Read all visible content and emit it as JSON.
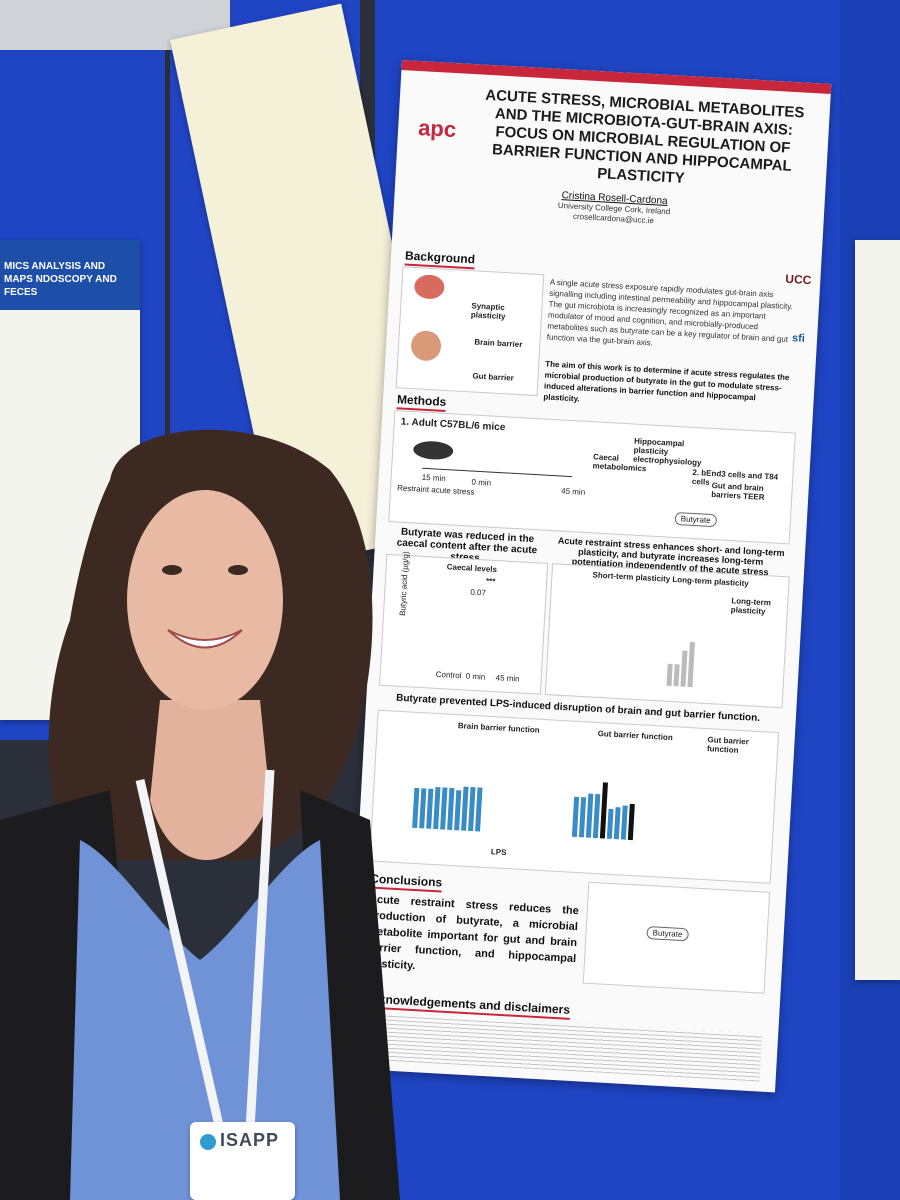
{
  "poster": {
    "title": "ACUTE STRESS, MICROBIAL METABOLITES AND THE MICROBIOTA-GUT-BRAIN AXIS: FOCUS ON MICROBIAL REGULATION OF BARRIER FUNCTION AND HIPPOCAMPAL PLASTICITY",
    "logo": "apc",
    "author_line": "Cristina Rosell-Cardona",
    "affiliation": "University College Cork, Ireland",
    "email": "crosellcardona@ucc.ie",
    "sections": {
      "background": "Background",
      "methods": "Methods",
      "conclusions": "Conclusions",
      "acknowledgements": "Acknowledgements and disclaimers"
    },
    "background_labels": [
      "Synaptic plasticity",
      "Brain barrier",
      "Gut barrier"
    ],
    "background_text": "A single acute stress exposure rapidly modulates gut-brain axis signalling including intestinal permeability and hippocampal plasticity. The gut microbiota is increasingly recognized as an important modulator of mood and cognition, and microbially-produced metabolites such as butyrate can be a key regulator of brain and gut function via the gut-brain axis.",
    "aim_text": "The aim of this work is to determine if acute stress regulates the microbial production of butyrate in the gut to modulate stress-induced alterations in barrier function and hippocampal plasticity.",
    "methods_step1": "1. Adult C57BL/6 mice",
    "methods_step2": "2. bEnd3 cells and T84 cells",
    "methods_labels": {
      "caecal": "Caecal metabolomics",
      "hippo": "Hippocampal plasticity electrophysiology",
      "barrier": "Gut and brain barriers TEER",
      "stress": "Restraint acute stress",
      "butyrate": "Butyrate",
      "t15": "15 min",
      "t0": "0 min",
      "t45": "45 min"
    },
    "result1_head": "Butyrate was reduced in the caecal content after the acute stress.",
    "result1_chart": "Caecal levels",
    "result1_ylabel": "Butyric acid (µg/g)",
    "result1_x": [
      "Control",
      "0 min",
      "45 min"
    ],
    "result1_sig": "***",
    "result1_p": "0.07",
    "result2_head": "Acute restraint stress enhances short- and long-term plasticity, and butyrate increases long-term potentiation independently of the acute stress exposure.",
    "result2_charts": [
      "Short-term plasticity",
      "Long-term plasticity",
      "Long-term plasticity"
    ],
    "result3_head": "Butyrate prevented LPS-induced disruption of brain and gut barrier function.",
    "result3_charts": [
      "Brain barrier function",
      "Gut barrier function",
      "Gut barrier function"
    ],
    "result3_xlabel": "LPS",
    "conclusion_text": "Acute restraint stress reduces the production of butyrate, a microbial metabolite important for gut and brain barrier function, and hippocampal plasticity.",
    "ucc": "UCC",
    "sfi": "sfi"
  },
  "badge": {
    "text": "ISAPP"
  },
  "left_poster": {
    "heading": "MICS ANALYSIS AND MAPS NDOSCOPY AND FECES"
  }
}
